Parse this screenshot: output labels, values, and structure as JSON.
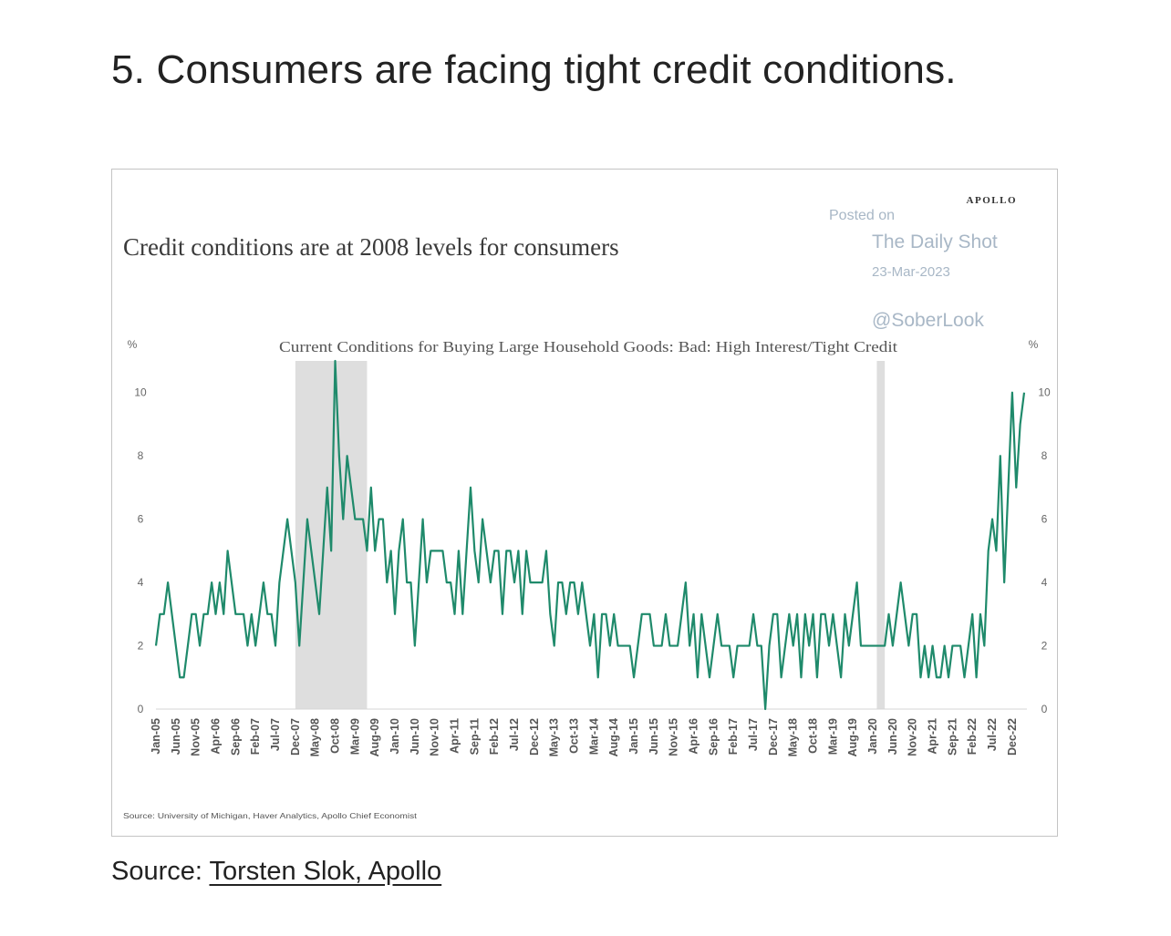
{
  "heading": "5. Consumers are facing tight credit conditions.",
  "source": {
    "prefix": "Source: ",
    "link_text": "Torsten Slok, Apollo"
  },
  "watermark": {
    "posted_on": "Posted on",
    "publication": "The Daily Shot",
    "date": "23-Mar-2023",
    "handle": "@SoberLook"
  },
  "brand": "APOLLO",
  "colors": {
    "line": "#1f8a6b",
    "recession": "#dedede",
    "watermark": "#a8b7c6",
    "text": "#3a3a3a"
  },
  "chart_data": {
    "type": "line",
    "title": "Credit conditions are at 2008 levels for consumers",
    "subtitle": "Current Conditions for Buying Large Household Goods: Bad: High Interest/Tight Credit",
    "ylabel_left": "%",
    "ylabel_right": "%",
    "ylim": [
      0,
      11
    ],
    "yticks": [
      0,
      2,
      4,
      6,
      8,
      10
    ],
    "source_note": "Source: University of Michigan, Haver Analytics, Apollo Chief Economist",
    "xlim": [
      "2005-01",
      "2023-03"
    ],
    "xticks": [
      "Jan-05",
      "Jun-05",
      "Nov-05",
      "Apr-06",
      "Sep-06",
      "Feb-07",
      "Jul-07",
      "Dec-07",
      "May-08",
      "Oct-08",
      "Mar-09",
      "Aug-09",
      "Jan-10",
      "Jun-10",
      "Nov-10",
      "Apr-11",
      "Sep-11",
      "Feb-12",
      "Jul-12",
      "Dec-12",
      "May-13",
      "Oct-13",
      "Mar-14",
      "Aug-14",
      "Jan-15",
      "Jun-15",
      "Nov-15",
      "Apr-16",
      "Sep-16",
      "Feb-17",
      "Jul-17",
      "Dec-17",
      "May-18",
      "Oct-18",
      "Mar-19",
      "Aug-19",
      "Jan-20",
      "Jun-20",
      "Nov-20",
      "Apr-21",
      "Sep-21",
      "Feb-22",
      "Jul-22",
      "Dec-22"
    ],
    "recessions": [
      [
        "2007-12",
        "2009-06"
      ],
      [
        "2020-02",
        "2020-04"
      ]
    ],
    "series": [
      {
        "points": [
          [
            "2005-01",
            2
          ],
          [
            "2005-02",
            3
          ],
          [
            "2005-03",
            3
          ],
          [
            "2005-04",
            4
          ],
          [
            "2005-05",
            3
          ],
          [
            "2005-06",
            2
          ],
          [
            "2005-07",
            1
          ],
          [
            "2005-08",
            1
          ],
          [
            "2005-09",
            2
          ],
          [
            "2005-10",
            3
          ],
          [
            "2005-11",
            3
          ],
          [
            "2005-12",
            2
          ],
          [
            "2006-01",
            3
          ],
          [
            "2006-02",
            3
          ],
          [
            "2006-03",
            4
          ],
          [
            "2006-04",
            3
          ],
          [
            "2006-05",
            4
          ],
          [
            "2006-06",
            3
          ],
          [
            "2006-07",
            5
          ],
          [
            "2006-08",
            4
          ],
          [
            "2006-09",
            3
          ],
          [
            "2006-10",
            3
          ],
          [
            "2006-11",
            3
          ],
          [
            "2006-12",
            2
          ],
          [
            "2007-01",
            3
          ],
          [
            "2007-02",
            2
          ],
          [
            "2007-03",
            3
          ],
          [
            "2007-04",
            4
          ],
          [
            "2007-05",
            3
          ],
          [
            "2007-06",
            3
          ],
          [
            "2007-07",
            2
          ],
          [
            "2007-08",
            4
          ],
          [
            "2007-09",
            5
          ],
          [
            "2007-10",
            6
          ],
          [
            "2007-11",
            5
          ],
          [
            "2007-12",
            4
          ],
          [
            "2008-01",
            2
          ],
          [
            "2008-02",
            4
          ],
          [
            "2008-03",
            6
          ],
          [
            "2008-04",
            5
          ],
          [
            "2008-05",
            4
          ],
          [
            "2008-06",
            3
          ],
          [
            "2008-07",
            5
          ],
          [
            "2008-08",
            7
          ],
          [
            "2008-09",
            5
          ],
          [
            "2008-10",
            11
          ],
          [
            "2008-11",
            8
          ],
          [
            "2008-12",
            6
          ],
          [
            "2009-01",
            8
          ],
          [
            "2009-02",
            7
          ],
          [
            "2009-03",
            6
          ],
          [
            "2009-04",
            6
          ],
          [
            "2009-05",
            6
          ],
          [
            "2009-06",
            5
          ],
          [
            "2009-07",
            7
          ],
          [
            "2009-08",
            5
          ],
          [
            "2009-09",
            6
          ],
          [
            "2009-10",
            6
          ],
          [
            "2009-11",
            4
          ],
          [
            "2009-12",
            5
          ],
          [
            "2010-01",
            3
          ],
          [
            "2010-02",
            5
          ],
          [
            "2010-03",
            6
          ],
          [
            "2010-04",
            4
          ],
          [
            "2010-05",
            4
          ],
          [
            "2010-06",
            2
          ],
          [
            "2010-07",
            4
          ],
          [
            "2010-08",
            6
          ],
          [
            "2010-09",
            4
          ],
          [
            "2010-10",
            5
          ],
          [
            "2010-11",
            5
          ],
          [
            "2010-12",
            5
          ],
          [
            "2011-01",
            5
          ],
          [
            "2011-02",
            4
          ],
          [
            "2011-03",
            4
          ],
          [
            "2011-04",
            3
          ],
          [
            "2011-05",
            5
          ],
          [
            "2011-06",
            3
          ],
          [
            "2011-07",
            5
          ],
          [
            "2011-08",
            7
          ],
          [
            "2011-09",
            5
          ],
          [
            "2011-10",
            4
          ],
          [
            "2011-11",
            6
          ],
          [
            "2011-12",
            5
          ],
          [
            "2012-01",
            4
          ],
          [
            "2012-02",
            5
          ],
          [
            "2012-03",
            5
          ],
          [
            "2012-04",
            3
          ],
          [
            "2012-05",
            5
          ],
          [
            "2012-06",
            5
          ],
          [
            "2012-07",
            4
          ],
          [
            "2012-08",
            5
          ],
          [
            "2012-09",
            3
          ],
          [
            "2012-10",
            5
          ],
          [
            "2012-11",
            4
          ],
          [
            "2012-12",
            4
          ],
          [
            "2013-01",
            4
          ],
          [
            "2013-02",
            4
          ],
          [
            "2013-03",
            5
          ],
          [
            "2013-04",
            3
          ],
          [
            "2013-05",
            2
          ],
          [
            "2013-06",
            4
          ],
          [
            "2013-07",
            4
          ],
          [
            "2013-08",
            3
          ],
          [
            "2013-09",
            4
          ],
          [
            "2013-10",
            4
          ],
          [
            "2013-11",
            3
          ],
          [
            "2013-12",
            4
          ],
          [
            "2014-01",
            3
          ],
          [
            "2014-02",
            2
          ],
          [
            "2014-03",
            3
          ],
          [
            "2014-04",
            1
          ],
          [
            "2014-05",
            3
          ],
          [
            "2014-06",
            3
          ],
          [
            "2014-07",
            2
          ],
          [
            "2014-08",
            3
          ],
          [
            "2014-09",
            2
          ],
          [
            "2014-10",
            2
          ],
          [
            "2014-11",
            2
          ],
          [
            "2014-12",
            2
          ],
          [
            "2015-01",
            1
          ],
          [
            "2015-02",
            2
          ],
          [
            "2015-03",
            3
          ],
          [
            "2015-04",
            3
          ],
          [
            "2015-05",
            3
          ],
          [
            "2015-06",
            2
          ],
          [
            "2015-07",
            2
          ],
          [
            "2015-08",
            2
          ],
          [
            "2015-09",
            3
          ],
          [
            "2015-10",
            2
          ],
          [
            "2015-11",
            2
          ],
          [
            "2015-12",
            2
          ],
          [
            "2016-01",
            3
          ],
          [
            "2016-02",
            4
          ],
          [
            "2016-03",
            2
          ],
          [
            "2016-04",
            3
          ],
          [
            "2016-05",
            1
          ],
          [
            "2016-06",
            3
          ],
          [
            "2016-07",
            2
          ],
          [
            "2016-08",
            1
          ],
          [
            "2016-09",
            2
          ],
          [
            "2016-10",
            3
          ],
          [
            "2016-11",
            2
          ],
          [
            "2016-12",
            2
          ],
          [
            "2017-01",
            2
          ],
          [
            "2017-02",
            1
          ],
          [
            "2017-03",
            2
          ],
          [
            "2017-04",
            2
          ],
          [
            "2017-05",
            2
          ],
          [
            "2017-06",
            2
          ],
          [
            "2017-07",
            3
          ],
          [
            "2017-08",
            2
          ],
          [
            "2017-09",
            2
          ],
          [
            "2017-10",
            0
          ],
          [
            "2017-11",
            2
          ],
          [
            "2017-12",
            3
          ],
          [
            "2018-01",
            3
          ],
          [
            "2018-02",
            1
          ],
          [
            "2018-03",
            2
          ],
          [
            "2018-04",
            3
          ],
          [
            "2018-05",
            2
          ],
          [
            "2018-06",
            3
          ],
          [
            "2018-07",
            1
          ],
          [
            "2018-08",
            3
          ],
          [
            "2018-09",
            2
          ],
          [
            "2018-10",
            3
          ],
          [
            "2018-11",
            1
          ],
          [
            "2018-12",
            3
          ],
          [
            "2019-01",
            3
          ],
          [
            "2019-02",
            2
          ],
          [
            "2019-03",
            3
          ],
          [
            "2019-04",
            2
          ],
          [
            "2019-05",
            1
          ],
          [
            "2019-06",
            3
          ],
          [
            "2019-07",
            2
          ],
          [
            "2019-08",
            3
          ],
          [
            "2019-09",
            4
          ],
          [
            "2019-10",
            2
          ],
          [
            "2019-11",
            2
          ],
          [
            "2019-12",
            2
          ],
          [
            "2020-01",
            2
          ],
          [
            "2020-02",
            2
          ],
          [
            "2020-03",
            2
          ],
          [
            "2020-04",
            2
          ],
          [
            "2020-05",
            3
          ],
          [
            "2020-06",
            2
          ],
          [
            "2020-07",
            3
          ],
          [
            "2020-08",
            4
          ],
          [
            "2020-09",
            3
          ],
          [
            "2020-10",
            2
          ],
          [
            "2020-11",
            3
          ],
          [
            "2020-12",
            3
          ],
          [
            "2021-01",
            1
          ],
          [
            "2021-02",
            2
          ],
          [
            "2021-03",
            1
          ],
          [
            "2021-04",
            2
          ],
          [
            "2021-05",
            1
          ],
          [
            "2021-06",
            1
          ],
          [
            "2021-07",
            2
          ],
          [
            "2021-08",
            1
          ],
          [
            "2021-09",
            2
          ],
          [
            "2021-10",
            2
          ],
          [
            "2021-11",
            2
          ],
          [
            "2021-12",
            1
          ],
          [
            "2022-01",
            2
          ],
          [
            "2022-02",
            3
          ],
          [
            "2022-03",
            1
          ],
          [
            "2022-04",
            3
          ],
          [
            "2022-05",
            2
          ],
          [
            "2022-06",
            5
          ],
          [
            "2022-07",
            6
          ],
          [
            "2022-08",
            5
          ],
          [
            "2022-09",
            8
          ],
          [
            "2022-10",
            4
          ],
          [
            "2022-11",
            7
          ],
          [
            "2022-12",
            10
          ],
          [
            "2023-01",
            7
          ],
          [
            "2023-02",
            9
          ],
          [
            "2023-03",
            10
          ]
        ]
      }
    ]
  }
}
